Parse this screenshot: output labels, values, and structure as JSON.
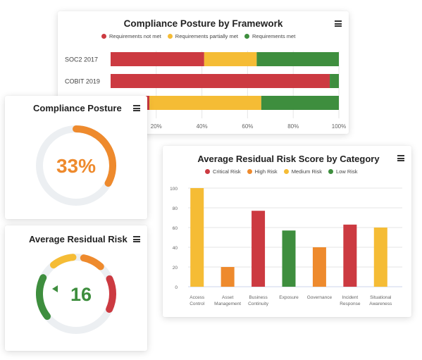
{
  "colors": {
    "not_met": "#CC3A41",
    "partial": "#F5BC35",
    "met": "#3E8E3E",
    "critical": "#CC3A41",
    "high": "#EE8A2D",
    "medium": "#F5BC35",
    "low": "#3E8E3E",
    "gauge_track": "#ECEFF2",
    "posture_arc": "#EE8A2D",
    "residual_value": "#3E8E3E"
  },
  "framework_card": {
    "title": "Compliance Posture by Framework",
    "menu_icon": "hamburger-menu-icon",
    "legend": [
      "Requirements not met",
      "Requirements partially met",
      "Requirements met"
    ],
    "chart_data": {
      "type": "bar",
      "orientation": "horizontal",
      "stacked": true,
      "categories": [
        "SOC2 2017",
        "COBIT 2019",
        ""
      ],
      "series": [
        {
          "name": "Requirements not met",
          "values": [
            41,
            96,
            17
          ]
        },
        {
          "name": "Requirements partially met",
          "values": [
            23,
            0,
            49
          ]
        },
        {
          "name": "Requirements met",
          "values": [
            36,
            4,
            34
          ]
        }
      ],
      "xlim": [
        0,
        100
      ],
      "x_ticks": [
        "20%",
        "40%",
        "60%",
        "80%",
        "100%"
      ],
      "grid": true,
      "legend_position": "top"
    }
  },
  "posture_card": {
    "title": "Compliance Posture",
    "menu_icon": "hamburger-menu-icon",
    "value": "33%",
    "percent": 33
  },
  "residual_card": {
    "title": "Average Residual Risk",
    "menu_icon": "hamburger-menu-icon",
    "value": "16",
    "pointer_icon": "triangle-pointer-icon"
  },
  "category_card": {
    "title": "Average Residual Risk Score by Category",
    "menu_icon": "hamburger-menu-icon",
    "legend": [
      "Critical Risk",
      "High Risk",
      "Medium Risk",
      "Low Risk"
    ],
    "chart_data": {
      "type": "bar",
      "categories": [
        [
          "Access",
          "Control"
        ],
        [
          "Asset",
          "Management"
        ],
        [
          "Business",
          "Continuity"
        ],
        [
          "Exposure"
        ],
        [
          "Governance"
        ],
        [
          "Incident",
          "Response"
        ],
        [
          "Situational",
          "Awareness"
        ]
      ],
      "values": [
        100,
        20,
        77,
        57,
        40,
        63,
        60
      ],
      "levels": [
        "medium",
        "high",
        "critical",
        "low",
        "high",
        "critical",
        "medium"
      ],
      "ylim": [
        0,
        100
      ],
      "y_ticks": [
        "0",
        "20",
        "40",
        "60",
        "80",
        "100"
      ],
      "grid": true,
      "legend_position": "top"
    }
  }
}
